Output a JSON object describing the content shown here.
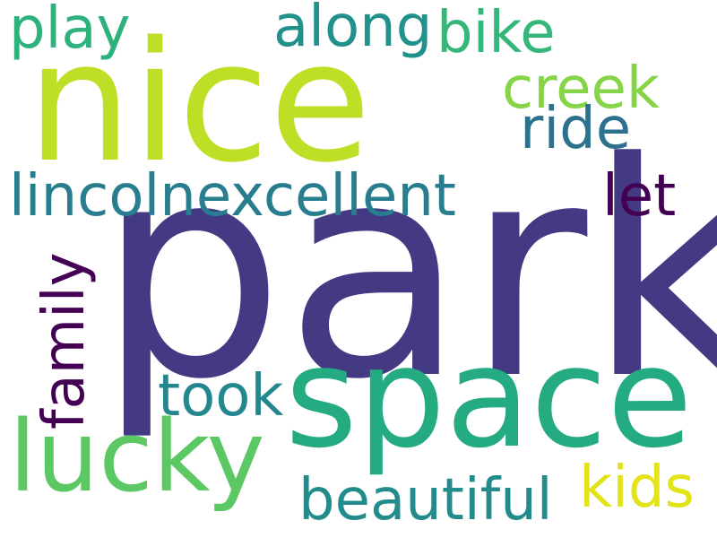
{
  "words": [
    {
      "text": "park",
      "color": "#443983",
      "weight": 1.0
    },
    {
      "text": "nice",
      "color": "#bddf26",
      "weight": 0.68
    },
    {
      "text": "space",
      "color": "#25ab82",
      "weight": 0.52
    },
    {
      "text": "lucky",
      "color": "#5cc863",
      "weight": 0.34
    },
    {
      "text": "play",
      "color": "#2db27d",
      "weight": 0.2
    },
    {
      "text": "along",
      "color": "#21918c",
      "weight": 0.2
    },
    {
      "text": "bike",
      "color": "#35b779",
      "weight": 0.2
    },
    {
      "text": "creek",
      "color": "#86d549",
      "weight": 0.2
    },
    {
      "text": "ride",
      "color": "#2c718e",
      "weight": 0.2
    },
    {
      "text": "lincolnexcellent",
      "color": "#287d8e",
      "weight": 0.2
    },
    {
      "text": "let",
      "color": "#440154",
      "weight": 0.2
    },
    {
      "text": "family",
      "color": "#440154",
      "weight": 0.2
    },
    {
      "text": "took",
      "color": "#24868e",
      "weight": 0.2
    },
    {
      "text": "beautiful",
      "color": "#228c8d",
      "weight": 0.2
    },
    {
      "text": "kids",
      "color": "#e2e418",
      "weight": 0.2
    }
  ]
}
